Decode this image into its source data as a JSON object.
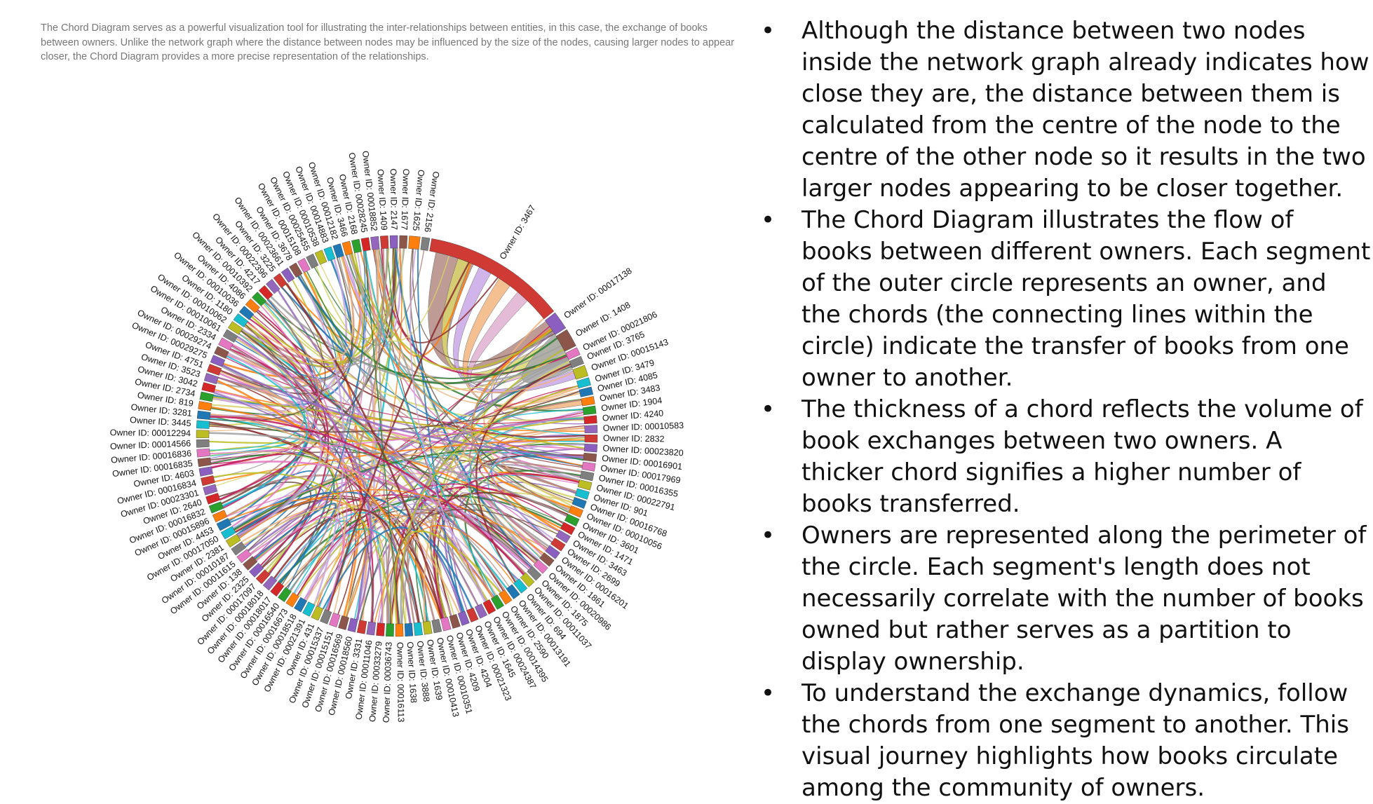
{
  "intro_text": "The Chord Diagram serves as a powerful visualization tool for illustrating the inter-relationships between entities, in this case, the exchange of books between owners. Unlike the network graph where the distance between nodes may be influenced by the size of the nodes, causing larger nodes to appear closer, the Chord Diagram provides a more precise representation of the relationships.",
  "bullets": [
    "Although the distance between two nodes inside the network graph already indicates how close they are, the distance between them is calculated from the centre of the node to the centre of the other node so it results in the two larger nodes appearing to be closer together.",
    "The Chord Diagram illustrates the flow of books between different owners. Each segment of the outer circle represents an owner, and the chords (the connecting lines within the circle) indicate the transfer of books from one owner to another.",
    "The thickness of a chord reflects the volume of book exchanges between two owners. A thicker chord signifies a higher number of books transferred.",
    "Owners are represented along the perimeter of the circle. Each segment's length does not necessarily correlate with the number of books owned but rather serves as a partition to display ownership.",
    "To understand the exchange dynamics, follow the chords from one segment to another. This visual journey highlights how books circulate among the community of owners."
  ],
  "chart_data": {
    "type": "chord",
    "owners": [
      "Owner ID: 3467",
      "Owner ID: 00017138",
      "Owner ID: 1408",
      "Owner ID: 00021806",
      "Owner ID: 3765",
      "Owner ID: 00015143",
      "Owner ID: 3479",
      "Owner ID: 4085",
      "Owner ID: 3483",
      "Owner ID: 1904",
      "Owner ID: 4240",
      "Owner ID: 00010583",
      "Owner ID: 2832",
      "Owner ID: 00023820",
      "Owner ID: 00016901",
      "Owner ID: 00017969",
      "Owner ID: 00016355",
      "Owner ID: 00022791",
      "Owner ID: 901",
      "Owner ID: 00016768",
      "Owner ID: 00010056",
      "Owner ID: 3601",
      "Owner ID: 1471",
      "Owner ID: 3463",
      "Owner ID: 2699",
      "Owner ID: 00016201",
      "Owner ID: 1861",
      "Owner ID: 00020986",
      "Owner ID: 1875",
      "Owner ID: 00011037",
      "Owner ID: 694",
      "Owner ID: 00013191",
      "Owner ID: 2590",
      "Owner ID: 00014395",
      "Owner ID: 00024387",
      "Owner ID: 1645",
      "Owner ID: 00021323",
      "Owner ID: 4204",
      "Owner ID: 4209",
      "Owner ID: 00010351",
      "Owner ID: 00010413",
      "Owner ID: 1639",
      "Owner ID: 3888",
      "Owner ID: 1638",
      "Owner ID: 00016113",
      "Owner ID: 00036743",
      "Owner ID: 00033279",
      "Owner ID: 00011046",
      "Owner ID: 3331",
      "Owner ID: 00018560",
      "Owner ID: 00016569",
      "Owner ID: 00015151",
      "Owner ID: 00015337",
      "Owner ID: 431",
      "Owner ID: 00021391",
      "Owner ID: 00018518",
      "Owner ID: 00016673",
      "Owner ID: 00016540",
      "Owner ID: 00018017",
      "Owner ID: 00018018",
      "Owner ID: 00017097",
      "Owner ID: 2325",
      "Owner ID: 138",
      "Owner ID: 00011615",
      "Owner ID: 00010187",
      "Owner ID: 2381",
      "Owner ID: 00017050",
      "Owner ID: 4453",
      "Owner ID: 00015896",
      "Owner ID: 00016832",
      "Owner ID: 2640",
      "Owner ID: 00023301",
      "Owner ID: 00016834",
      "Owner ID: 4603",
      "Owner ID: 00016835",
      "Owner ID: 00016836",
      "Owner ID: 00014566",
      "Owner ID: 00012294",
      "Owner ID: 3445",
      "Owner ID: 3281",
      "Owner ID: 819",
      "Owner ID: 2734",
      "Owner ID: 3042",
      "Owner ID: 3523",
      "Owner ID: 4751",
      "Owner ID: 00029275",
      "Owner ID: 00029274",
      "Owner ID: 2334",
      "Owner ID: 00010061",
      "Owner ID: 00010062",
      "Owner ID: 1180",
      "Owner ID: 00010036",
      "Owner ID: 4086",
      "Owner ID: 00010392",
      "Owner ID: 4217",
      "Owner ID: 00022396",
      "Owner ID: 3225",
      "Owner ID: 00023661",
      "Owner ID: 3678",
      "Owner ID: 00015108",
      "Owner ID: 00025455",
      "Owner ID: 00010538",
      "Owner ID: 00014883",
      "Owner ID: 00012182",
      "Owner ID: 3466",
      "Owner ID: 2168",
      "Owner ID: 00028245",
      "Owner ID: 00018852",
      "Owner ID: 1409",
      "Owner ID: 2147",
      "Owner ID: 1677",
      "Owner ID: 1625",
      "Owner ID: 2156"
    ],
    "arc_colors": [
      "#d03a35",
      "#8a5fc0",
      "#8c564b",
      "#e377c2",
      "#7f7f7f",
      "#bcbd22",
      "#17becf",
      "#1f77b4",
      "#ff7f0e",
      "#2ca02c",
      "#d62728",
      "#9467bd"
    ],
    "major_arcs": [
      {
        "owner": "Owner ID: 3467",
        "color": "#d03a35"
      },
      {
        "owner": "Owner ID: 00017138",
        "color": "#8a5fc0"
      },
      {
        "owner": "Owner ID: 1408",
        "color": "#8c564b"
      },
      {
        "owner": "Owner ID: 00015143",
        "color": "#bcbd22"
      },
      {
        "owner": "Owner ID: 1625",
        "color": "#ff7f0e"
      }
    ]
  }
}
